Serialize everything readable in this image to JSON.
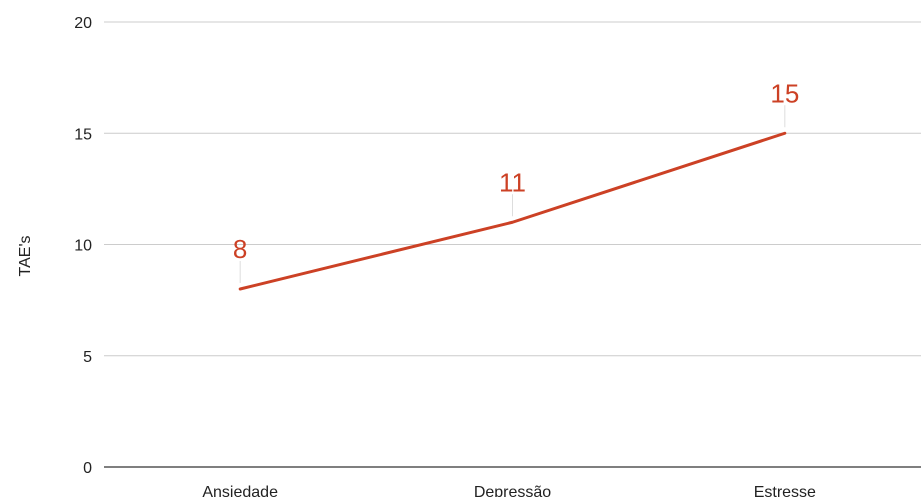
{
  "chart_data": {
    "type": "line",
    "title": "",
    "xlabel": "",
    "ylabel": "TAE's",
    "categories": [
      "Ansiedade",
      "Depressão",
      "Estresse"
    ],
    "series": [
      {
        "values": [
          8,
          11,
          15
        ],
        "color": "#cc4125"
      }
    ],
    "ylim": [
      0,
      20
    ],
    "yticks": [
      0,
      5,
      10,
      15,
      20
    ],
    "grid": true,
    "legend": "none",
    "colors": {
      "gridline": "#cccccc",
      "axis": "#333333",
      "text": "#222222"
    }
  }
}
